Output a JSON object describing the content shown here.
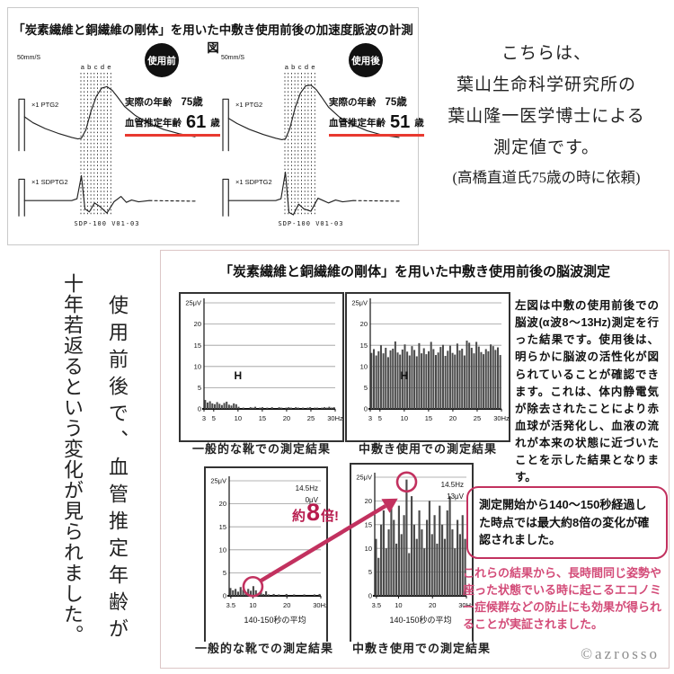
{
  "colors": {
    "red": "#e8392f",
    "crimson": "#c2315f",
    "multiplier_red": "#b81c4e",
    "pink_text": "#d34b78",
    "bar_dark": "#4b4b4b",
    "badge_bg": "#111111",
    "panel_border": "#c9c9c9",
    "bottom_panel_border": "#dcc6c6",
    "watermark_gray": "#8d8d8d"
  },
  "top_panel": {
    "title": "「炭素繊維と銅繊維の剛体」を用いた中敷き使用前後の加速度脈波の計測図"
  },
  "side_note": {
    "lines": [
      "こちらは、",
      "葉山生命科学研究所の",
      "葉山隆一医学博士による",
      "測定値です。",
      "(高橋直道氏75歳の時に依頼)"
    ]
  },
  "left_note": {
    "col1": "使用前後で、血管推定年齢が",
    "col2": "十年若返るという変化が見られました。"
  },
  "bottom_panel": {
    "title": "「炭素繊維と銅繊維の剛体」を用いた中敷き使用前後の脳波測定",
    "description": "左図は中敷の使用前後での脳波(α波8〜13Hz)測定を行った結果です。使用後は、明らかに脳波の活性化が図られていることが確認できます。これは、体内静電気が除去されたことにより赤血球が活発化し、血液の流れが本来の状態に近づいたことを示した結果となります。",
    "multiplier": {
      "pre": "約",
      "num": "8",
      "post": "倍!"
    },
    "callout": "測定開始から140〜150秒経過した時点では最大約8倍の変化が確認されました。",
    "conclusion": "これらの結果から、長時間同じ姿勢や座った状態でいる時に起こるエコノミー症候群などの防止にも効果が得られることが実証されました。",
    "watermark": "©azrosso"
  },
  "chart_data": [
    {
      "id": "pulse_before",
      "type": "line",
      "badge": "使用前",
      "scale": "50mm/S",
      "phases": [
        "a",
        "b",
        "c",
        "d",
        "e"
      ],
      "gain": "×1",
      "rows": [
        "PTG2",
        "SDPTG2"
      ],
      "device": "SDP-100   V01-03",
      "actual_age_label": "実際の年齢",
      "actual_age": "75歳",
      "vascular_age_label": "血管推定年齢",
      "vas_num": "61",
      "vas_unit": "歳",
      "ptg2_calib": [
        [
          0,
          4
        ],
        [
          0,
          74
        ],
        [
          3.2,
          74
        ],
        [
          3.2,
          4
        ]
      ],
      "ptg2": [
        [
          3.2,
          50
        ],
        [
          8,
          42
        ],
        [
          15,
          34
        ],
        [
          23,
          27
        ],
        [
          30,
          22
        ],
        [
          33.5,
          20
        ],
        [
          35.5,
          21
        ],
        [
          38,
          32
        ],
        [
          41,
          58
        ],
        [
          44,
          78
        ],
        [
          47,
          89
        ],
        [
          50,
          91
        ],
        [
          53,
          86
        ],
        [
          56,
          77
        ],
        [
          60,
          64
        ],
        [
          66,
          52
        ],
        [
          73,
          42
        ],
        [
          82,
          33
        ],
        [
          91,
          27
        ],
        [
          100,
          23
        ]
      ],
      "sdptg2_calib": [
        [
          0,
          4
        ],
        [
          0,
          66
        ],
        [
          3.2,
          66
        ],
        [
          3.2,
          4
        ]
      ],
      "sdptg2": [
        [
          3.2,
          30
        ],
        [
          20,
          30
        ],
        [
          30,
          30
        ],
        [
          33,
          33
        ],
        [
          35.5,
          72
        ],
        [
          37.5,
          16
        ],
        [
          40,
          11
        ],
        [
          43,
          26
        ],
        [
          46,
          20
        ],
        [
          50,
          9
        ],
        [
          54,
          28
        ],
        [
          58,
          37
        ],
        [
          61,
          27
        ],
        [
          64,
          31
        ],
        [
          68,
          28
        ],
        [
          74,
          30
        ]
      ],
      "sdptg2_tail": [
        [
          74,
          30
        ],
        [
          100,
          29
        ]
      ]
    },
    {
      "id": "pulse_after",
      "type": "line",
      "badge": "使用後",
      "scale": "50mm/S",
      "phases": [
        "a",
        "b",
        "c",
        "d",
        "e"
      ],
      "gain": "×1",
      "rows": [
        "PTG2",
        "SDPTG2"
      ],
      "device": "SDP-100   V01-03",
      "actual_age_label": "実際の年齢",
      "actual_age": "75歳",
      "vascular_age_label": "血管推定年齢",
      "vas_num": "51",
      "vas_unit": "歳",
      "ptg2_calib": [
        [
          0,
          4
        ],
        [
          0,
          74
        ],
        [
          3.2,
          74
        ],
        [
          3.2,
          4
        ]
      ],
      "ptg2": [
        [
          3.2,
          48
        ],
        [
          8,
          41
        ],
        [
          15,
          33
        ],
        [
          23,
          26
        ],
        [
          30,
          21
        ],
        [
          33.5,
          19
        ],
        [
          35.5,
          20
        ],
        [
          38,
          34
        ],
        [
          41,
          62
        ],
        [
          44,
          82
        ],
        [
          47,
          92
        ],
        [
          50,
          93
        ],
        [
          53,
          87
        ],
        [
          56,
          77
        ],
        [
          60,
          63
        ],
        [
          66,
          50
        ],
        [
          73,
          40
        ],
        [
          82,
          31
        ],
        [
          91,
          25
        ],
        [
          100,
          22
        ]
      ],
      "sdptg2_calib": [
        [
          0,
          4
        ],
        [
          0,
          66
        ],
        [
          3.2,
          66
        ],
        [
          3.2,
          4
        ]
      ],
      "sdptg2": [
        [
          3.2,
          30
        ],
        [
          20,
          30
        ],
        [
          30,
          30
        ],
        [
          33,
          33
        ],
        [
          35.5,
          78
        ],
        [
          37.5,
          10
        ],
        [
          40,
          6
        ],
        [
          43,
          24
        ],
        [
          46,
          16
        ],
        [
          50,
          12
        ],
        [
          54,
          34
        ],
        [
          57,
          30
        ],
        [
          60,
          26
        ],
        [
          64,
          31
        ],
        [
          68,
          28
        ],
        [
          74,
          30
        ]
      ],
      "sdptg2_tail": [
        [
          74,
          30
        ],
        [
          100,
          29
        ]
      ]
    },
    {
      "id": "eeg_shoes",
      "type": "bar",
      "caption": "一般的な靴での測定結果",
      "ylabel_top": "25μV",
      "ylim": [
        0,
        25
      ],
      "xlim": [
        3,
        30
      ],
      "yticks": [
        0,
        5,
        10,
        15,
        20,
        25
      ],
      "xticks": [
        [
          3,
          "3"
        ],
        [
          5,
          "5"
        ],
        [
          10,
          "10"
        ],
        [
          15,
          "15"
        ],
        [
          20,
          "20"
        ],
        [
          25,
          "25"
        ],
        [
          30,
          "30Hz"
        ]
      ],
      "marker": {
        "text": "H",
        "x": 10,
        "y": 7
      },
      "values": [
        2.1,
        1.5,
        1.8,
        1.3,
        1.1,
        1.6,
        1.2,
        0.9,
        1.4,
        1.7,
        1.0,
        0.8,
        1.3,
        1.1,
        0.5,
        0,
        0.3,
        0,
        0,
        0.4,
        0.3,
        0.5,
        0,
        0.3,
        0.4,
        0,
        0.3,
        0,
        0.4,
        0,
        0,
        0.4,
        0.3,
        0,
        0.3,
        0.4,
        0.3,
        0,
        0.4,
        0.3,
        0,
        0.3,
        0,
        0.3,
        0.4,
        0,
        0.3,
        0.3,
        0,
        0.3,
        0.4,
        0.3,
        0.5,
        0.3,
        0.4
      ]
    },
    {
      "id": "eeg_insole",
      "type": "bar",
      "caption": "中敷き使用での測定結果",
      "ylabel_top": "25μV",
      "ylim": [
        0,
        25
      ],
      "xlim": [
        3,
        30
      ],
      "yticks": [
        0,
        5,
        10,
        15,
        20,
        25
      ],
      "xticks": [
        [
          3,
          "3"
        ],
        [
          5,
          "5"
        ],
        [
          10,
          "10"
        ],
        [
          15,
          "15"
        ],
        [
          20,
          "20"
        ],
        [
          25,
          "25"
        ],
        [
          30,
          "30Hz"
        ]
      ],
      "marker": {
        "text": "H",
        "x": 10,
        "y": 7
      },
      "values": [
        13.2,
        14.1,
        12.6,
        13.6,
        15.0,
        13.1,
        14.4,
        12.2,
        13.8,
        14.2,
        15.9,
        13.3,
        12.8,
        14.0,
        15.2,
        13.5,
        12.6,
        14.8,
        13.9,
        12.4,
        15.5,
        13.1,
        14.3,
        12.9,
        13.6,
        15.8,
        14.1,
        12.7,
        13.3,
        14.6,
        15.1,
        12.5,
        13.7,
        14.9,
        13.2,
        12.8,
        15.4,
        13.8,
        14.2,
        12.6,
        16.1,
        15.6,
        14.4,
        13.1,
        15.8,
        14.7,
        13.4,
        12.9,
        14.1,
        13.6,
        15.2,
        14.8,
        13.9,
        14.5,
        12.7
      ]
    },
    {
      "id": "eeg_shoes_avg",
      "type": "bar",
      "caption": "一般的な靴での測定結果",
      "sub": "140-150秒の平均",
      "readout": [
        "14.5Hz",
        "0μV"
      ],
      "circle": {
        "x": 10,
        "y": 2
      },
      "ylabel_top": "25μV",
      "ylim": [
        0,
        25
      ],
      "xlim": [
        3,
        30
      ],
      "yticks": [
        0,
        5,
        10,
        15,
        20,
        25
      ],
      "xticks": [
        [
          3.5,
          "3.5"
        ],
        [
          10,
          "10"
        ],
        [
          20,
          "20"
        ],
        [
          30,
          "30Hz"
        ]
      ],
      "values": [
        1.7,
        1.2,
        1.5,
        0.9,
        1.9,
        1.3,
        0.8,
        1.5,
        1.1,
        2.1,
        1.2,
        0.6,
        0.9,
        0.4,
        1.0,
        0.3,
        0,
        0.4,
        0,
        0.3,
        0,
        0,
        0.4,
        0,
        0,
        0.3,
        0,
        0,
        0,
        0.3,
        0,
        0,
        0,
        0.3,
        0,
        0.4
      ]
    },
    {
      "id": "eeg_insole_avg",
      "type": "bar",
      "caption": "中敷き使用での測定結果",
      "sub": "140-150秒の平均",
      "readout": [
        "14.5Hz",
        "13μV"
      ],
      "circle": {
        "x": 12.4,
        "y": 24
      },
      "ylabel_top": "25μV",
      "ylim": [
        0,
        25
      ],
      "xlim": [
        3,
        30
      ],
      "yticks": [
        0,
        5,
        10,
        15,
        20,
        25
      ],
      "xticks": [
        [
          3.5,
          "3.5"
        ],
        [
          10,
          "10"
        ],
        [
          20,
          "20"
        ],
        [
          30,
          "30Hz"
        ]
      ],
      "values": [
        12,
        8,
        15,
        18,
        10,
        14,
        20,
        16,
        11,
        19,
        13,
        17,
        24.5,
        9,
        21,
        15,
        12,
        18,
        14,
        10,
        16,
        20,
        13,
        17,
        11,
        19,
        15,
        12,
        18,
        21,
        14,
        10,
        16,
        13,
        17,
        12
      ]
    }
  ]
}
